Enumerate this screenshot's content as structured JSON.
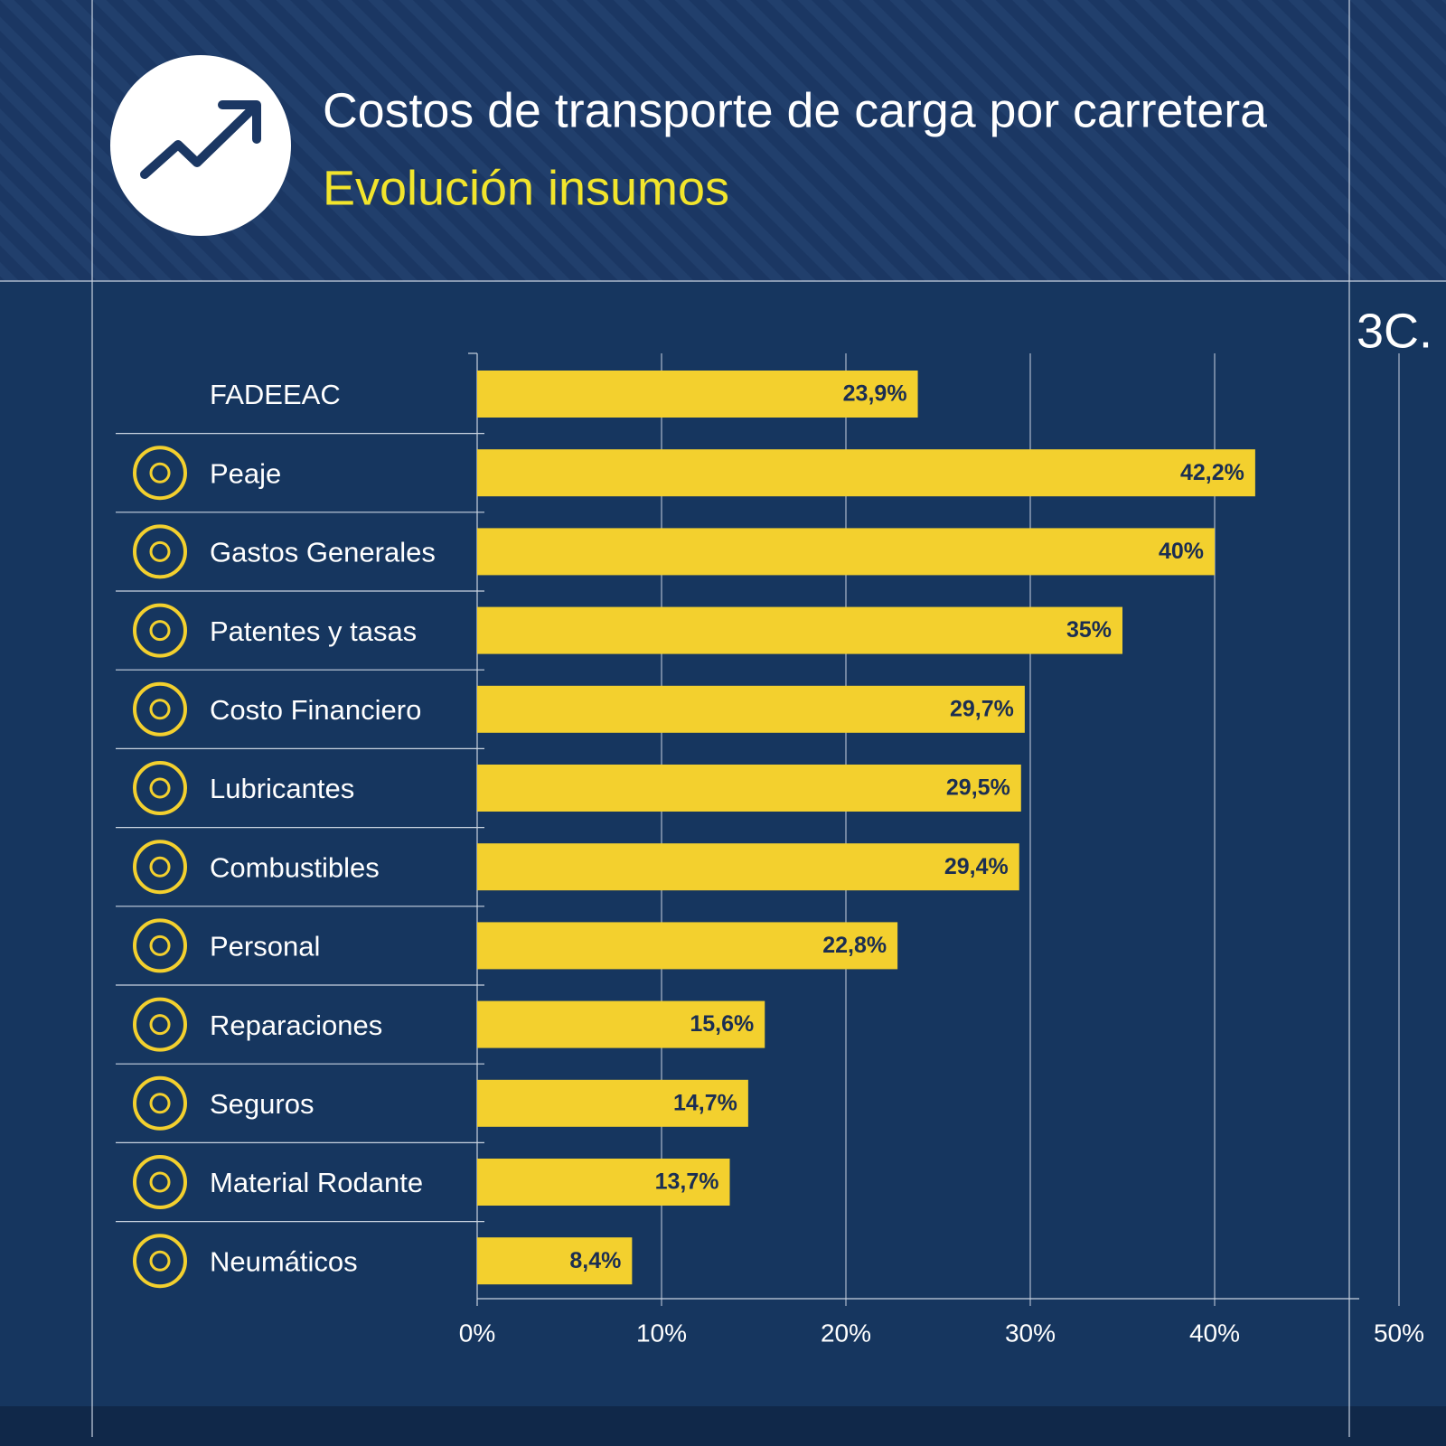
{
  "chart_data": {
    "type": "bar",
    "orientation": "horizontal",
    "title": "Costos de transporte de carga por carretera",
    "subtitle": "Evolución insumos",
    "annotation": "3C.",
    "categories": [
      "FADEEAC",
      "Peaje",
      "Gastos Generales",
      "Patentes y tasas",
      "Costo Financiero",
      "Lubricantes",
      "Combustibles",
      "Personal",
      "Reparaciones",
      "Seguros",
      "Material Rodante",
      "Neumáticos"
    ],
    "values": [
      23.9,
      42.2,
      40,
      35,
      29.7,
      29.5,
      29.4,
      22.8,
      15.6,
      14.7,
      13.7,
      8.4
    ],
    "value_labels": [
      "23,9%",
      "42,2%",
      "40%",
      "35%",
      "29,7%",
      "29,5%",
      "29,4%",
      "22,8%",
      "15,6%",
      "14,7%",
      "13,7%",
      "8,4%"
    ],
    "color": "#f3d02e",
    "xlim": [
      0,
      50
    ],
    "xticks": [
      {
        "value": 0,
        "label": "0%"
      },
      {
        "value": 10,
        "label": "10%"
      },
      {
        "value": 20,
        "label": "20%"
      },
      {
        "value": 30,
        "label": "30%"
      },
      {
        "value": 40,
        "label": "40%"
      },
      {
        "value": 50,
        "label": "50%"
      }
    ],
    "grid": true
  }
}
